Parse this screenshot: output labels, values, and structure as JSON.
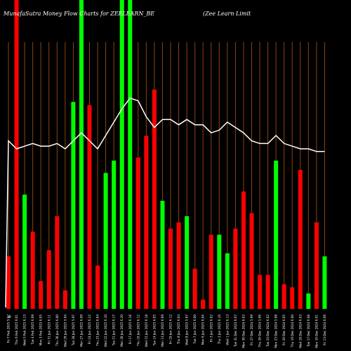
{
  "chart_data": {
    "type": "bar",
    "title_left": "MunafaSutra  Money Flow  Charts for ZEELEARN_BE",
    "title_right": "(Zee   Learn  Limit",
    "ylabel_fragment": "M",
    "colors": {
      "background": "#000000",
      "grid": "#8B4513",
      "up": "#00ff00",
      "down": "#ff0000",
      "line": "#ffffff",
      "text": "#ffffff"
    },
    "grid": true,
    "ylim": [
      0,
      1
    ],
    "categories": [
      "Fri 7 Feb 2025 5.92",
      "Thu 6 Feb 2025 6.01",
      "Wed 5 Feb 2025 6.13",
      "Tue 4 Feb 2025 6.09",
      "Mon 3 Feb 2025 6.05",
      "Fri 31 Jan 2025 6.11",
      "Thu 30 Jan 2025 6.00",
      "Wed 29 Jan 2025 5.94",
      "Tue 28 Jan 2025 5.97",
      "Mon 27 Jan 2025 6.09",
      "Fri 24 Jan 2025 6.22",
      "Thu 23 Jan 2025 6.04",
      "Wed 22 Jan 2025 6.10",
      "Tue 21 Jan 2025 6.17",
      "Mon 20 Jan 2025 6.20",
      "Fri 17 Jan 2025 6.16",
      "Thu 16 Jan 2025 6.12",
      "Wed 15 Jan 2025 6.18",
      "Tue 14 Jan 2025 6.05",
      "Mon 13 Jan 2025 6.09",
      "Fri 10 Jan 2025 6.12",
      "Thu 9 Jan 2025 6.04",
      "Wed 8 Jan 2025 5.97",
      "Tue 7 Jan 2025 6.00",
      "Mon 6 Jan 2025 6.04",
      "Fri 3 Jan 2025 6.02",
      "Thu 2 Jan 2025 6.10",
      "Wed 1 Jan 2025 6.13",
      "Tue 31 Dec 2024 6.07",
      "Mon 30 Dec 2024 6.03",
      "Fri 27 Dec 2024 5.99",
      "Thu 26 Dec 2024 5.96",
      "Tue 24 Dec 2024 6.02",
      "Mon 23 Dec 2024 5.98",
      "Fri 20 Dec 2024 6.05",
      "Thu 19 Dec 2024 6.00",
      "Wed 18 Dec 2024 6.03",
      "Tue 17 Dec 2024 6.08",
      "Mon 16 Dec 2024 6.01",
      "Fri 13 Dec 2024 6.06"
    ],
    "series": [
      {
        "type": "bar",
        "values": [
          0.17,
          1.0,
          0.37,
          0.25,
          0.09,
          0.19,
          0.3,
          0.06,
          0.67,
          1.0,
          0.66,
          0.14,
          0.44,
          0.48,
          1.0,
          1.0,
          0.49,
          0.56,
          0.71,
          0.35,
          0.26,
          0.28,
          0.3,
          0.13,
          0.03,
          0.24,
          0.24,
          0.18,
          0.26,
          0.38,
          0.31,
          0.11,
          0.11,
          0.48,
          0.08,
          0.07,
          0.45,
          0.05,
          0.28,
          0.17
        ],
        "colors": [
          "down",
          "down",
          "up",
          "down",
          "down",
          "down",
          "down",
          "down",
          "up",
          "up",
          "down",
          "down",
          "up",
          "up",
          "up",
          "up",
          "down",
          "down",
          "down",
          "up",
          "down",
          "down",
          "up",
          "down",
          "down",
          "down",
          "up",
          "up",
          "down",
          "down",
          "down",
          "down",
          "down",
          "up",
          "down",
          "down",
          "down",
          "up",
          "down",
          "up"
        ]
      },
      {
        "type": "line",
        "values": [
          0.63,
          0.6,
          0.61,
          0.62,
          0.61,
          0.61,
          0.62,
          0.6,
          0.63,
          0.66,
          0.63,
          0.6,
          0.65,
          0.7,
          0.75,
          0.79,
          0.78,
          0.72,
          0.68,
          0.71,
          0.71,
          0.69,
          0.71,
          0.69,
          0.69,
          0.66,
          0.67,
          0.7,
          0.68,
          0.66,
          0.63,
          0.62,
          0.62,
          0.65,
          0.62,
          0.61,
          0.6,
          0.6,
          0.59,
          0.59
        ]
      }
    ]
  }
}
